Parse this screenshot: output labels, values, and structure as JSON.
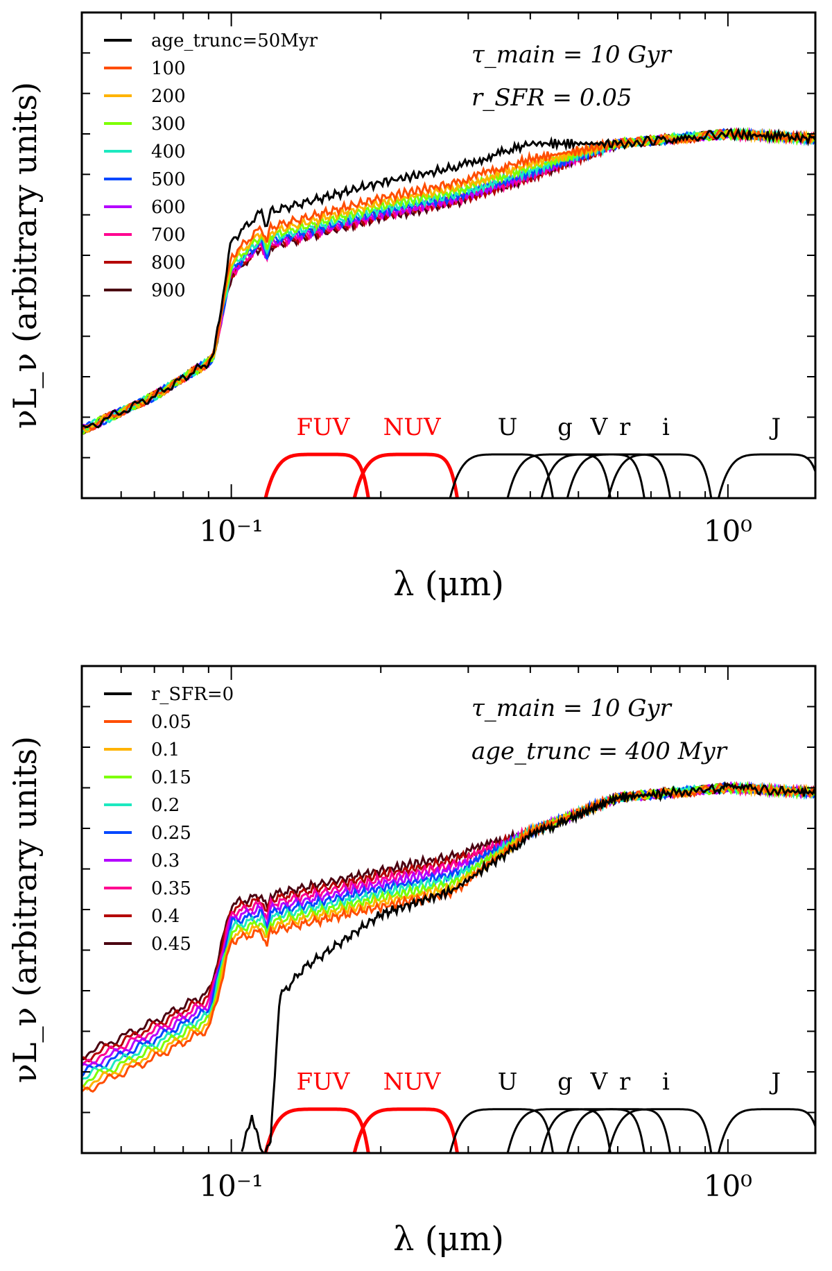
{
  "chart_data": [
    {
      "type": "line",
      "title": "",
      "xlabel": "λ (μm)",
      "ylabel": "νL_ν (arbitrary units)",
      "xscale": "log",
      "xlim": [
        0.05,
        1.5
      ],
      "ylim": [
        0,
        1
      ],
      "x_tick_labels": [
        "10⁻¹",
        "10⁰"
      ],
      "x_tick_values": [
        0.1,
        1.0
      ],
      "annotations": [
        "τ_main = 10 Gyr",
        "r_SFR = 0.05"
      ],
      "legend_title_key": "age_trunc",
      "legend": [
        "age_trunc=50Myr",
        "100",
        "200",
        "300",
        "400",
        "500",
        "600",
        "700",
        "800",
        "900"
      ],
      "legend_display": [
        {
          "prefix": "age",
          "sub": "trunc",
          "suffix": "=50Myr",
          "italic": true
        },
        {
          "prefix": "100"
        },
        {
          "prefix": "200"
        },
        {
          "prefix": "300"
        },
        {
          "prefix": "400"
        },
        {
          "prefix": "500"
        },
        {
          "prefix": "600"
        },
        {
          "prefix": "700"
        },
        {
          "prefix": "800"
        },
        {
          "prefix": "900"
        }
      ],
      "series_colors": [
        "#000000",
        "#ff4d00",
        "#ffb300",
        "#7dff00",
        "#1de9c0",
        "#0047ff",
        "#b400ff",
        "#ff0090",
        "#b40000",
        "#4a0010"
      ],
      "series_anchors": {
        "x": [
          0.05,
          0.07,
          0.09,
          0.092,
          0.1,
          0.115,
          0.118,
          0.12,
          0.2,
          0.28,
          0.4,
          0.6,
          1.0,
          1.5
        ],
        "base": [
          0.14,
          0.21,
          0.28,
          0.29,
          0.45,
          0.51,
          0.48,
          0.51,
          0.57,
          0.6,
          0.65,
          0.73,
          0.75,
          0.74
        ],
        "uv_offset_first": 0.08,
        "uv_offset_decay": 0.8
      },
      "filters": {
        "labels": [
          "FUV",
          "NUV",
          "U",
          "g",
          "V",
          "r",
          "i",
          "J"
        ],
        "label_colors": [
          "#ff0000",
          "#ff0000",
          "#000000",
          "#000000",
          "#000000",
          "#000000",
          "#000000",
          "#000000"
        ],
        "centers_um": [
          0.153,
          0.231,
          0.36,
          0.47,
          0.55,
          0.62,
          0.75,
          1.25
        ]
      }
    },
    {
      "type": "line",
      "title": "",
      "xlabel": "λ (μm)",
      "ylabel": "νL_ν (arbitrary units)",
      "xscale": "log",
      "xlim": [
        0.05,
        1.5
      ],
      "ylim": [
        0,
        1
      ],
      "x_tick_labels": [
        "10⁻¹",
        "10⁰"
      ],
      "x_tick_values": [
        0.1,
        1.0
      ],
      "annotations": [
        "τ_main = 10 Gyr",
        "age_trunc = 400 Myr"
      ],
      "legend_title_key": "r_SFR",
      "legend": [
        "r_SFR=0",
        "0.05",
        "0.1",
        "0.15",
        "0.2",
        "0.25",
        "0.3",
        "0.35",
        "0.4",
        "0.45"
      ],
      "legend_display": [
        {
          "prefix": "r",
          "sub": "SFR",
          "suffix": "=0",
          "italic": true
        },
        {
          "prefix": "0.05"
        },
        {
          "prefix": "0.1"
        },
        {
          "prefix": "0.15"
        },
        {
          "prefix": "0.2"
        },
        {
          "prefix": "0.25"
        },
        {
          "prefix": "0.3"
        },
        {
          "prefix": "0.35"
        },
        {
          "prefix": "0.4"
        },
        {
          "prefix": "0.45"
        }
      ],
      "series_colors": [
        "#000000",
        "#ff4d00",
        "#ffb300",
        "#7dff00",
        "#1de9c0",
        "#0047ff",
        "#b400ff",
        "#ff0090",
        "#b40000",
        "#4a0010"
      ],
      "series_anchors": {
        "x": [
          0.05,
          0.07,
          0.09,
          0.092,
          0.1,
          0.115,
          0.118,
          0.12,
          0.2,
          0.28,
          0.4,
          0.6,
          1.0,
          1.5
        ],
        "base": [
          0.2,
          0.27,
          0.33,
          0.36,
          0.51,
          0.53,
          0.5,
          0.53,
          0.58,
          0.61,
          0.66,
          0.73,
          0.75,
          0.74
        ],
        "black_x": [
          0.105,
          0.11,
          0.115,
          0.12,
          0.125,
          0.14,
          0.2,
          0.28,
          0.4,
          0.6,
          1.0,
          1.5
        ],
        "black_y": [
          0.0,
          0.08,
          0.0,
          0.02,
          0.32,
          0.38,
          0.49,
          0.54,
          0.65,
          0.73,
          0.75,
          0.74
        ]
      },
      "filters": {
        "labels": [
          "FUV",
          "NUV",
          "U",
          "g",
          "V",
          "r",
          "i",
          "J"
        ],
        "label_colors": [
          "#ff0000",
          "#ff0000",
          "#000000",
          "#000000",
          "#000000",
          "#000000",
          "#000000",
          "#000000"
        ],
        "centers_um": [
          0.153,
          0.231,
          0.36,
          0.47,
          0.55,
          0.62,
          0.75,
          1.25
        ]
      }
    }
  ]
}
